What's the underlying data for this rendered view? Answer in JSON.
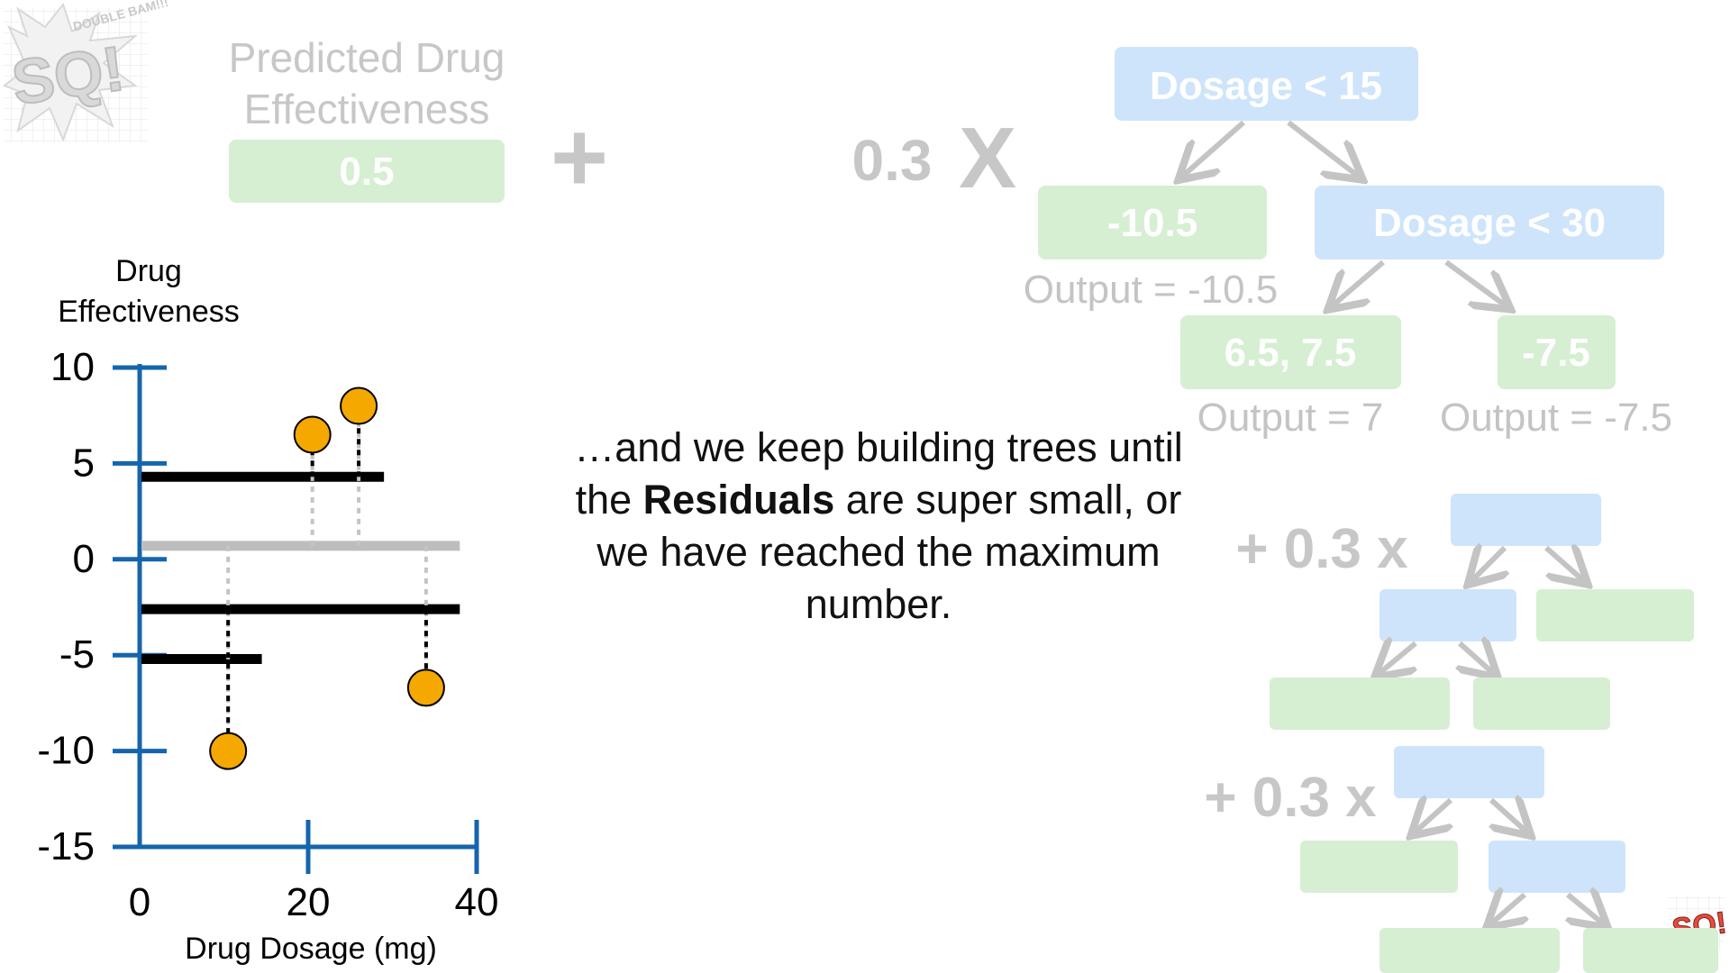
{
  "logo": {
    "letters": "SQ!",
    "burst": "DOUBLE BAM!!!"
  },
  "initial_prediction": {
    "title_line1": "Predicted Drug",
    "title_line2": "Effectiveness",
    "value": "0.5",
    "plus": "+"
  },
  "first_tree": {
    "learning_rate": "0.3",
    "times": "X",
    "root": "Dosage < 15",
    "left_leaf": "-10.5",
    "left_output": "Output = -10.5",
    "right_node": "Dosage < 30",
    "mid_leaf": "6.5, 7.5",
    "mid_output": "Output = 7",
    "right_leaf": "-7.5",
    "right_output": "Output = -7.5"
  },
  "more_trees": {
    "term1": "+ 0.3 x",
    "term2": "+ 0.3 x"
  },
  "caption": {
    "before": "…and we keep building trees until the ",
    "bold": "Residuals",
    "after": " are super small, or we have reached the maximum number."
  },
  "colors": {
    "faded_green": "#d6efd2",
    "faded_blue": "#cde4fb",
    "axis_blue": "#1565ad",
    "point_orange": "#f5a800",
    "faded_gray": "#c7c7c7"
  },
  "chart_data": {
    "type": "scatter",
    "title": "Drug Effectiveness",
    "xlabel": "Drug Dosage (mg)",
    "ylabel": "Drug Effectiveness",
    "xlim": [
      0,
      40
    ],
    "ylim": [
      -15,
      10
    ],
    "x_ticks": [
      "0",
      "20",
      "40"
    ],
    "y_ticks": [
      "10",
      "5",
      "0",
      "-5",
      "-10",
      "-15"
    ],
    "ylabel_line1": "Drug",
    "ylabel_line2": "Effectiveness",
    "points": [
      {
        "x": 10.5,
        "y": -10
      },
      {
        "x": 20.5,
        "y": 6.5
      },
      {
        "x": 26,
        "y": 8
      },
      {
        "x": 34,
        "y": -6.7
      }
    ],
    "prediction_segments": [
      {
        "x0": 0,
        "x1": 29,
        "y": 4.3,
        "color": "#000000"
      },
      {
        "x0": 0,
        "x1": 38,
        "y": 0.7,
        "color": "#bdbdbd"
      },
      {
        "x0": 0,
        "x1": 38,
        "y": -2.6,
        "color": "#000000"
      },
      {
        "x0": 0,
        "x1": 14.5,
        "y": -5.2,
        "color": "#000000"
      }
    ]
  }
}
